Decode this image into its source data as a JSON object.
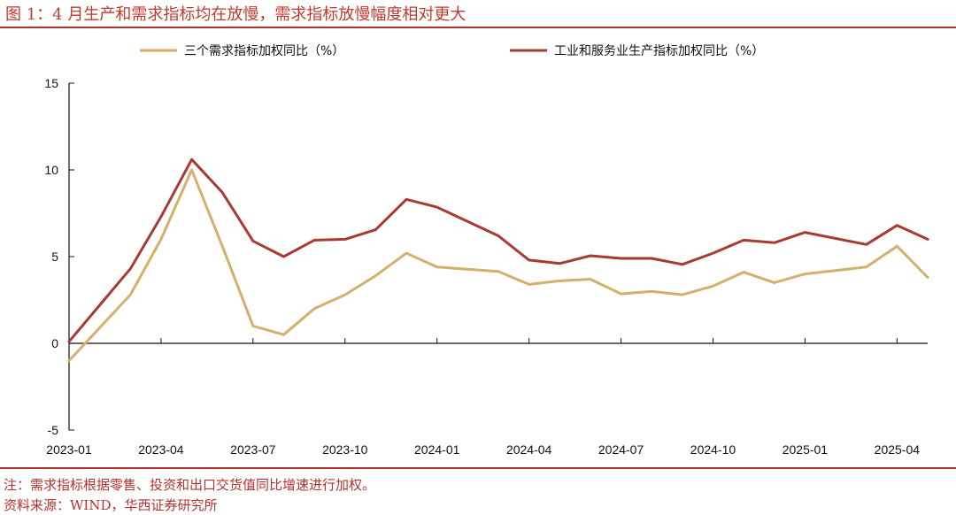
{
  "figure": {
    "title": "图 1：4 月生产和需求指标均在放慢，需求指标放慢幅度相对更大",
    "note": "注：需求指标根据零售、投资和出口交货值同比增速进行加权。",
    "source": "资料来源：WIND，华西证券研究所"
  },
  "colors": {
    "accent": "#b5322e",
    "demand": "#d4b06a",
    "production": "#a83a32"
  },
  "chart_data": {
    "type": "line",
    "title": "",
    "xlabel": "",
    "ylabel": "",
    "ylim": [
      -5,
      15
    ],
    "yticks": [
      -5,
      0,
      5,
      10,
      15
    ],
    "x_tick_labels": [
      "2023-01",
      "2023-04",
      "2023-07",
      "2023-10",
      "2024-01",
      "2024-04",
      "2024-07",
      "2024-10",
      "2025-01",
      "2025-04"
    ],
    "x": [
      "2023-01",
      "2023-03",
      "2023-04",
      "2023-05",
      "2023-06",
      "2023-07",
      "2023-08",
      "2023-09",
      "2023-10",
      "2023-11",
      "2023-12",
      "2024-01",
      "2024-03",
      "2024-04",
      "2024-05",
      "2024-06",
      "2024-07",
      "2024-08",
      "2024-09",
      "2024-10",
      "2024-11",
      "2024-12",
      "2025-01",
      "2025-03",
      "2025-04",
      "2025-05"
    ],
    "series": [
      {
        "name": "三个需求指标加权同比（%）",
        "color": "#d4b06a",
        "values": [
          -1.0,
          2.8,
          6.0,
          10.0,
          5.6,
          1.0,
          0.5,
          2.0,
          2.8,
          3.9,
          5.2,
          4.4,
          4.15,
          3.4,
          3.6,
          3.7,
          2.85,
          3.0,
          2.8,
          3.3,
          4.1,
          3.5,
          4.0,
          4.4,
          5.6,
          3.8
        ]
      },
      {
        "name": "工业和服务业生产指标加权同比（%）",
        "color": "#a83a32",
        "values": [
          0.1,
          4.3,
          7.3,
          10.6,
          8.7,
          5.9,
          5.0,
          5.95,
          6.0,
          6.55,
          8.3,
          7.85,
          6.2,
          4.8,
          4.6,
          5.05,
          4.9,
          4.9,
          4.55,
          5.2,
          5.95,
          5.8,
          6.4,
          5.7,
          6.8,
          6.0
        ]
      }
    ],
    "legend": "top",
    "grid": false
  }
}
